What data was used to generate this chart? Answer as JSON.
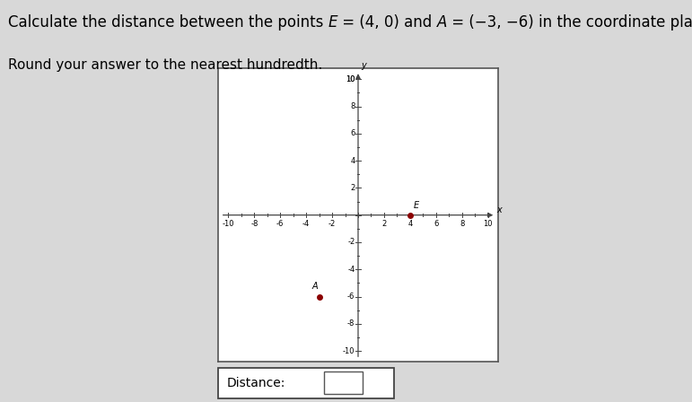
{
  "point_E": [
    4,
    0
  ],
  "point_A": [
    -3,
    -6
  ],
  "label_E": "E",
  "label_A": "A",
  "point_color": "#8B0000",
  "xlim": [
    -10,
    10
  ],
  "ylim": [
    -10,
    10
  ],
  "axis_color": "#444444",
  "bg_color": "#d8d8d8",
  "plot_bg_color": "#ffffff",
  "distance_label": "Distance:",
  "box_bg": "#ffffff",
  "box_edge": "#444444",
  "font_size_title": 12,
  "font_size_subtitle": 11,
  "font_size_ticks": 6,
  "font_size_labels": 7
}
